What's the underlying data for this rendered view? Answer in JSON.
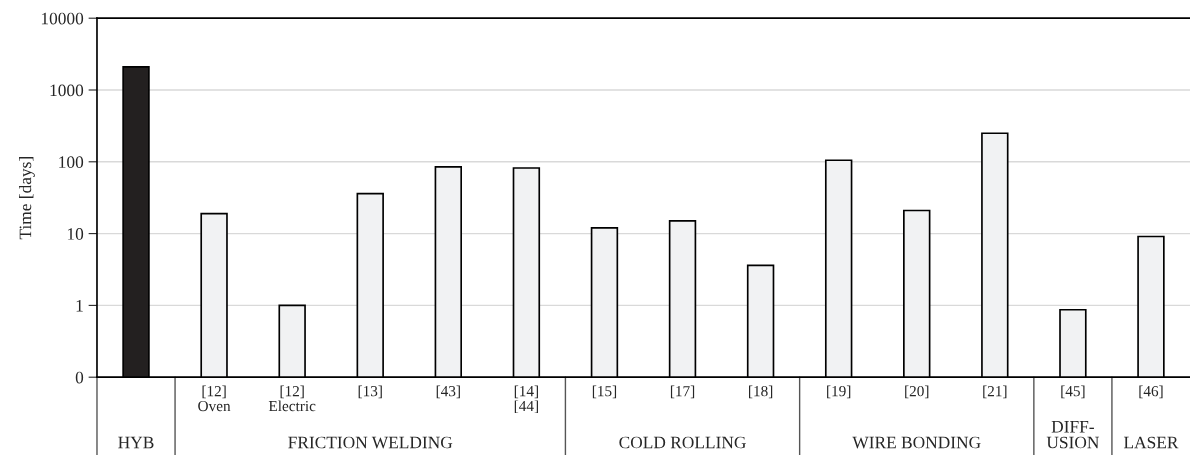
{
  "chart_data": {
    "type": "bar",
    "ylabel": "Time [days]",
    "categories": [
      null,
      "[12]\nOven",
      "[12]\nElectric",
      "[13]",
      "[43]",
      "[14]\n[44]",
      "[15]",
      "[17]",
      "[18]",
      "[19]",
      "[20]",
      "[21]",
      "[45]",
      "[46]"
    ],
    "values": [
      2100,
      19,
      1,
      36,
      85,
      82,
      12,
      15,
      3.6,
      105,
      21,
      250,
      0.87,
      9.1
    ],
    "colors": [
      "#231f20",
      "#f1f2f3",
      "#f1f2f3",
      "#f1f2f3",
      "#f1f2f3",
      "#f1f2f3",
      "#f1f2f3",
      "#f1f2f3",
      "#f1f2f3",
      "#f1f2f3",
      "#f1f2f3",
      "#f1f2f3",
      "#f1f2f3",
      "#f1f2f3"
    ],
    "log": "y",
    "ylim": [
      0.1,
      10000
    ],
    "yticks": [
      {
        "value": 0.1,
        "label": "0"
      },
      1,
      10,
      100,
      1000,
      10000
    ],
    "grid": "y",
    "annotations": [
      "HYB",
      "FRICTION WELDING",
      "COLD ROLLING",
      "WIRE BONDING",
      "DIFF-\nUSION",
      "LASER"
    ]
  }
}
